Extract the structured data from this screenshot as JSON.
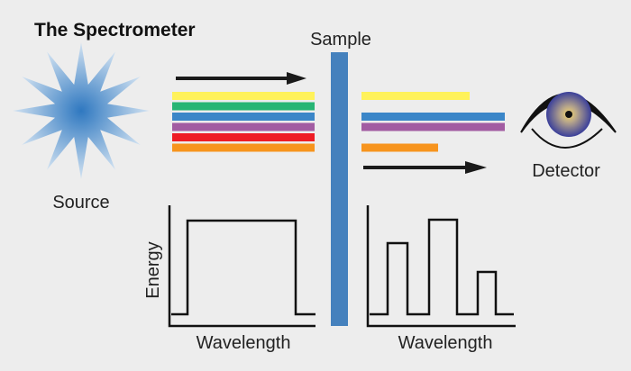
{
  "title": "The Spectrometer",
  "labels": {
    "source": "Source",
    "sample": "Sample",
    "detector": "Detector",
    "energy_axis": "Energy",
    "wavelength_axis_left": "Wavelength",
    "wavelength_axis_right": "Wavelength"
  },
  "colors": {
    "background": "#ededed",
    "sample": "#4581bd",
    "incident_bands": [
      "#fff25a",
      "#27b574",
      "#3b86c8",
      "#a25ca2",
      "#ee1c25",
      "#f7941e"
    ],
    "transmitted_bands": [
      "#fff25a",
      "#3b86c8",
      "#a25ca2",
      "#f7941e"
    ]
  },
  "icons": [
    "star-source-icon",
    "eye-detector-icon",
    "arrow-right-icon"
  ]
}
